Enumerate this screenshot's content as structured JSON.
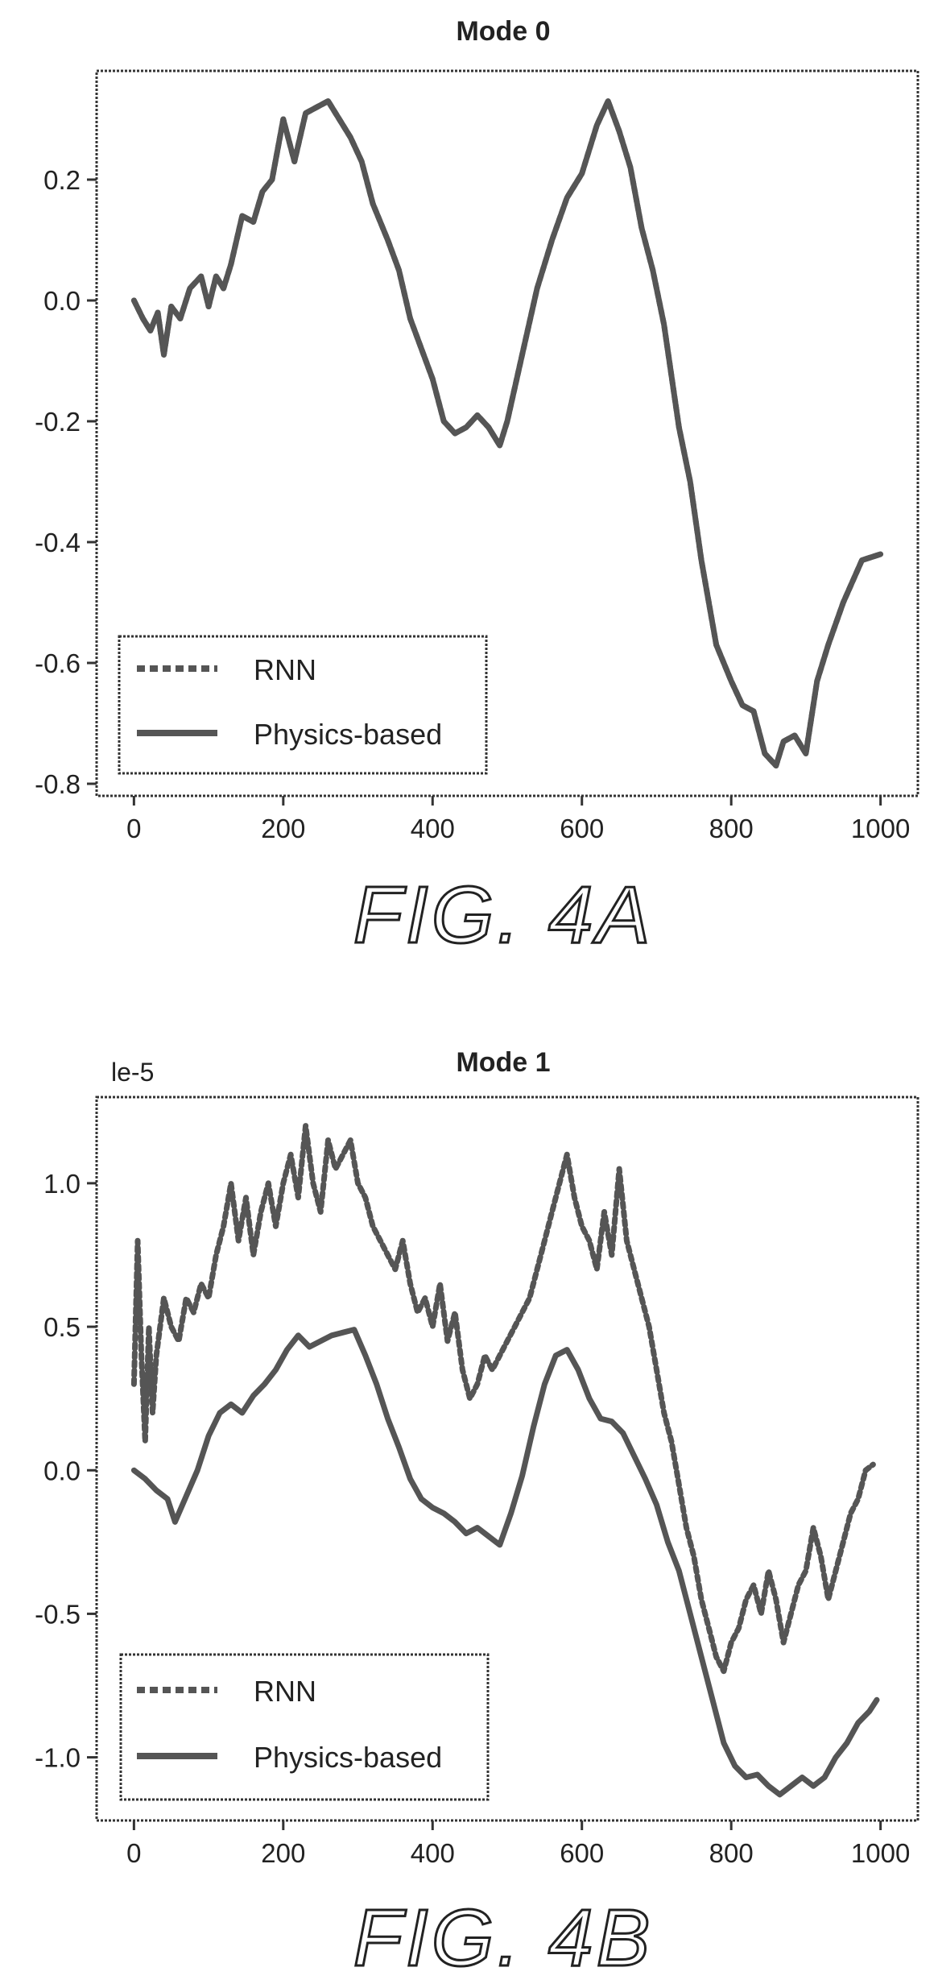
{
  "figures": [
    {
      "caption": "FIG. 4A"
    },
    {
      "caption": "FIG. 4B"
    }
  ],
  "colors": {
    "line": "#555555",
    "text": "#222222",
    "frame": "#333333"
  },
  "chart_data": [
    {
      "type": "line",
      "title": "Mode 0",
      "scale_note": "",
      "xlabel": "",
      "ylabel": "",
      "xlim": [
        -50,
        1050
      ],
      "ylim": [
        -0.82,
        0.38
      ],
      "xticks": [
        0,
        200,
        400,
        600,
        800,
        1000
      ],
      "xtick_labels": [
        "0",
        "200",
        "400",
        "600",
        "800",
        "1000"
      ],
      "yticks": [
        -0.8,
        -0.6,
        -0.4,
        -0.2,
        0.0,
        0.2
      ],
      "ytick_labels": [
        "-0.8",
        "-0.6",
        "-0.4",
        "-0.2",
        "0.0",
        "0.2"
      ],
      "legend": {
        "position": "lower-left",
        "entries": [
          "RNN",
          "Physics-based"
        ]
      },
      "series": [
        {
          "name": "RNN",
          "style": "dotted",
          "x": [
            0,
            12,
            22,
            32,
            40,
            50,
            62,
            75,
            90,
            100,
            110,
            120,
            130,
            145,
            160,
            172,
            185,
            200,
            215,
            230,
            245,
            260,
            275,
            290,
            305,
            320,
            340,
            355,
            370,
            385,
            400,
            415,
            430,
            445,
            460,
            475,
            490,
            500,
            520,
            540,
            560,
            580,
            600,
            620,
            635,
            650,
            665,
            680,
            695,
            710,
            730,
            745,
            760,
            780,
            800,
            815,
            830,
            845,
            860,
            870,
            885,
            900,
            915,
            930,
            950,
            975,
            1000
          ],
          "y": [
            0.0,
            -0.03,
            -0.05,
            -0.02,
            -0.09,
            -0.01,
            -0.03,
            0.02,
            0.04,
            -0.01,
            0.04,
            0.02,
            0.06,
            0.14,
            0.13,
            0.18,
            0.2,
            0.3,
            0.23,
            0.31,
            0.32,
            0.33,
            0.3,
            0.27,
            0.23,
            0.16,
            0.1,
            0.05,
            -0.03,
            -0.08,
            -0.13,
            -0.2,
            -0.22,
            -0.21,
            -0.19,
            -0.21,
            -0.24,
            -0.2,
            -0.09,
            0.02,
            0.1,
            0.17,
            0.21,
            0.29,
            0.33,
            0.28,
            0.22,
            0.12,
            0.05,
            -0.04,
            -0.21,
            -0.3,
            -0.43,
            -0.57,
            -0.63,
            -0.67,
            -0.68,
            -0.75,
            -0.77,
            -0.73,
            -0.72,
            -0.75,
            -0.63,
            -0.57,
            -0.5,
            -0.43,
            -0.42
          ]
        },
        {
          "name": "Physics-based",
          "style": "solid",
          "x": [
            0,
            12,
            22,
            32,
            40,
            50,
            62,
            75,
            90,
            100,
            110,
            120,
            130,
            145,
            160,
            172,
            185,
            200,
            215,
            230,
            245,
            260,
            275,
            290,
            305,
            320,
            340,
            355,
            370,
            385,
            400,
            415,
            430,
            445,
            460,
            475,
            490,
            500,
            520,
            540,
            560,
            580,
            600,
            620,
            635,
            650,
            665,
            680,
            695,
            710,
            730,
            745,
            760,
            780,
            800,
            815,
            830,
            845,
            860,
            870,
            885,
            900,
            915,
            930,
            950,
            975,
            1000
          ],
          "y": [
            0.0,
            -0.03,
            -0.05,
            -0.02,
            -0.09,
            -0.01,
            -0.03,
            0.02,
            0.04,
            -0.01,
            0.04,
            0.02,
            0.06,
            0.14,
            0.13,
            0.18,
            0.2,
            0.3,
            0.23,
            0.31,
            0.32,
            0.33,
            0.3,
            0.27,
            0.23,
            0.16,
            0.1,
            0.05,
            -0.03,
            -0.08,
            -0.13,
            -0.2,
            -0.22,
            -0.21,
            -0.19,
            -0.21,
            -0.24,
            -0.2,
            -0.09,
            0.02,
            0.1,
            0.17,
            0.21,
            0.29,
            0.33,
            0.28,
            0.22,
            0.12,
            0.05,
            -0.04,
            -0.21,
            -0.3,
            -0.43,
            -0.57,
            -0.63,
            -0.67,
            -0.68,
            -0.75,
            -0.77,
            -0.73,
            -0.72,
            -0.75,
            -0.63,
            -0.57,
            -0.5,
            -0.43,
            -0.42
          ]
        }
      ]
    },
    {
      "type": "line",
      "title": "Mode 1",
      "scale_note": "le-5",
      "xlabel": "",
      "ylabel": "",
      "xlim": [
        -50,
        1050
      ],
      "ylim": [
        -1.22,
        1.3
      ],
      "xticks": [
        0,
        200,
        400,
        600,
        800,
        1000
      ],
      "xtick_labels": [
        "0",
        "200",
        "400",
        "600",
        "800",
        "1000"
      ],
      "yticks": [
        -1.0,
        -0.5,
        0.0,
        0.5,
        1.0
      ],
      "ytick_labels": [
        "-1.0",
        "-0.5",
        "0.0",
        "0.5",
        "1.0"
      ],
      "legend": {
        "position": "lower-left",
        "entries": [
          "RNN",
          "Physics-based"
        ]
      },
      "series": [
        {
          "name": "RNN",
          "style": "dotted",
          "x": [
            0,
            5,
            10,
            15,
            20,
            25,
            30,
            40,
            50,
            60,
            70,
            80,
            90,
            100,
            110,
            120,
            130,
            140,
            150,
            160,
            170,
            180,
            190,
            200,
            210,
            220,
            230,
            240,
            250,
            260,
            270,
            280,
            290,
            300,
            310,
            320,
            330,
            340,
            350,
            360,
            370,
            380,
            390,
            400,
            410,
            420,
            430,
            440,
            450,
            460,
            470,
            480,
            490,
            500,
            510,
            520,
            530,
            540,
            550,
            560,
            570,
            580,
            590,
            600,
            610,
            620,
            630,
            640,
            650,
            660,
            670,
            680,
            690,
            700,
            710,
            720,
            730,
            740,
            750,
            760,
            770,
            780,
            790,
            800,
            810,
            820,
            830,
            840,
            850,
            860,
            870,
            880,
            890,
            900,
            910,
            920,
            930,
            940,
            950,
            960,
            970,
            980,
            990
          ],
          "y": [
            0.3,
            0.8,
            0.4,
            0.1,
            0.5,
            0.2,
            0.4,
            0.6,
            0.5,
            0.45,
            0.6,
            0.55,
            0.65,
            0.6,
            0.75,
            0.85,
            1.0,
            0.8,
            0.95,
            0.75,
            0.9,
            1.0,
            0.85,
            1.0,
            1.1,
            0.95,
            1.2,
            1.0,
            0.9,
            1.15,
            1.05,
            1.1,
            1.15,
            1.0,
            0.95,
            0.85,
            0.8,
            0.75,
            0.7,
            0.8,
            0.65,
            0.55,
            0.6,
            0.5,
            0.65,
            0.45,
            0.55,
            0.35,
            0.25,
            0.3,
            0.4,
            0.35,
            0.4,
            0.45,
            0.5,
            0.55,
            0.6,
            0.7,
            0.8,
            0.9,
            1.0,
            1.1,
            0.95,
            0.85,
            0.8,
            0.7,
            0.9,
            0.75,
            1.05,
            0.8,
            0.7,
            0.6,
            0.5,
            0.35,
            0.2,
            0.1,
            -0.05,
            -0.2,
            -0.3,
            -0.45,
            -0.55,
            -0.65,
            -0.7,
            -0.6,
            -0.55,
            -0.45,
            -0.4,
            -0.5,
            -0.35,
            -0.45,
            -0.6,
            -0.5,
            -0.4,
            -0.35,
            -0.2,
            -0.3,
            -0.45,
            -0.35,
            -0.25,
            -0.15,
            -0.1,
            0.0,
            0.02
          ]
        },
        {
          "name": "Physics-based",
          "style": "solid",
          "x": [
            0,
            15,
            30,
            45,
            55,
            70,
            85,
            100,
            115,
            130,
            145,
            160,
            175,
            190,
            205,
            220,
            235,
            250,
            265,
            280,
            295,
            310,
            325,
            340,
            355,
            370,
            385,
            400,
            415,
            430,
            445,
            460,
            475,
            490,
            505,
            520,
            535,
            550,
            565,
            580,
            595,
            610,
            625,
            640,
            655,
            670,
            685,
            700,
            715,
            730,
            745,
            760,
            775,
            790,
            805,
            820,
            835,
            850,
            865,
            880,
            895,
            910,
            925,
            940,
            955,
            970,
            985,
            995
          ],
          "y": [
            0.0,
            -0.03,
            -0.07,
            -0.1,
            -0.18,
            -0.09,
            0.0,
            0.12,
            0.2,
            0.23,
            0.2,
            0.26,
            0.3,
            0.35,
            0.42,
            0.47,
            0.43,
            0.45,
            0.47,
            0.48,
            0.49,
            0.4,
            0.3,
            0.18,
            0.08,
            -0.03,
            -0.1,
            -0.13,
            -0.15,
            -0.18,
            -0.22,
            -0.2,
            -0.23,
            -0.26,
            -0.15,
            -0.02,
            0.15,
            0.3,
            0.4,
            0.42,
            0.35,
            0.25,
            0.18,
            0.17,
            0.13,
            0.05,
            -0.03,
            -0.12,
            -0.25,
            -0.35,
            -0.5,
            -0.65,
            -0.8,
            -0.95,
            -1.03,
            -1.07,
            -1.06,
            -1.1,
            -1.13,
            -1.1,
            -1.07,
            -1.1,
            -1.07,
            -1.0,
            -0.95,
            -0.88,
            -0.84,
            -0.8
          ]
        }
      ]
    }
  ]
}
